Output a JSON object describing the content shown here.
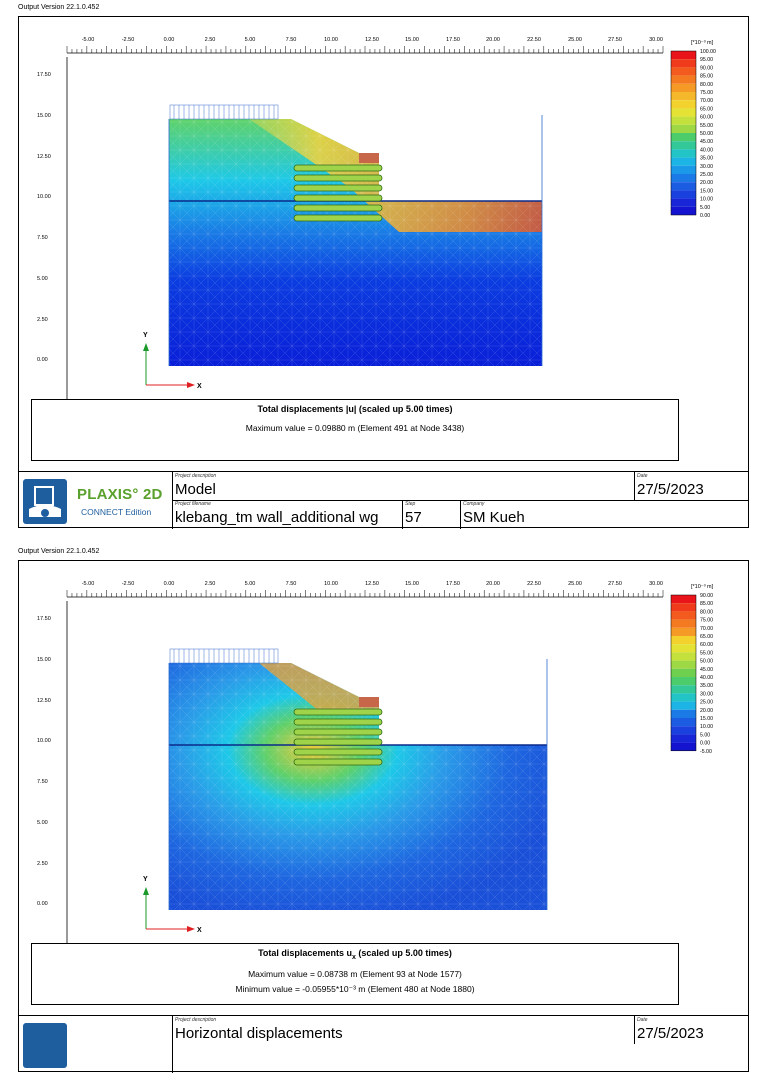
{
  "software_version": "Output Version 22.1.0.452",
  "x_axis": {
    "ticks": [
      "-5.00",
      "-2.50",
      "0.00",
      "2.50",
      "5.00",
      "7.50",
      "10.00",
      "12.50",
      "15.00",
      "17.50",
      "20.00",
      "22.50",
      "25.00",
      "27.50",
      "30.00"
    ]
  },
  "y_axis": {
    "ticks": [
      "17.50",
      "15.00",
      "12.50",
      "10.00",
      "7.50",
      "5.00",
      "2.50",
      "0.00"
    ]
  },
  "axis_labels": {
    "x": "X",
    "y": "Y"
  },
  "outputs": [
    {
      "legend": {
        "unit": "[*10⁻³ m]",
        "values": [
          "100.00",
          "95.00",
          "90.00",
          "85.00",
          "80.00",
          "75.00",
          "70.00",
          "65.00",
          "60.00",
          "55.00",
          "50.00",
          "45.00",
          "40.00",
          "35.00",
          "30.00",
          "25.00",
          "20.00",
          "15.00",
          "10.00",
          "5.00",
          "0.00"
        ]
      },
      "caption": {
        "title": "Total displacements |u| (scaled up 5.00 times)",
        "line1": "Maximum value = 0.09880 m (Element 491 at Node 3438)"
      },
      "titleblock": {
        "project_description_label": "Project description",
        "project_description": "Model",
        "date_label": "Date",
        "date": "27/5/2023",
        "project_filename_label": "Project filename",
        "project_filename": "klebang_tm wall_additional wg",
        "step_label": "Step",
        "step": "57",
        "company_label": "Company",
        "company": "SM Kueh",
        "logo_name": "PLAXIS° 2D",
        "logo_sub": "CONNECT Edition"
      }
    },
    {
      "legend": {
        "unit": "[*10⁻³ m]",
        "values": [
          "90.00",
          "85.00",
          "80.00",
          "75.00",
          "70.00",
          "65.00",
          "60.00",
          "55.00",
          "50.00",
          "45.00",
          "40.00",
          "35.00",
          "30.00",
          "25.00",
          "20.00",
          "15.00",
          "10.00",
          "5.00",
          "0.00",
          "-5.00"
        ]
      },
      "caption": {
        "title_main": "Total displacements u",
        "title_sub": "x",
        "title_rest": " (scaled up 5.00 times)",
        "line1": "Maximum value = 0.08738 m (Element 93 at Node 1577)",
        "line2": "Minimum value = -0.05955*10⁻³ m (Element 480 at Node 1880)"
      },
      "titleblock": {
        "project_description_label": "Project description",
        "project_description": "Horizontal displacements",
        "date_label": "Date",
        "date": "27/5/2023"
      }
    }
  ]
}
